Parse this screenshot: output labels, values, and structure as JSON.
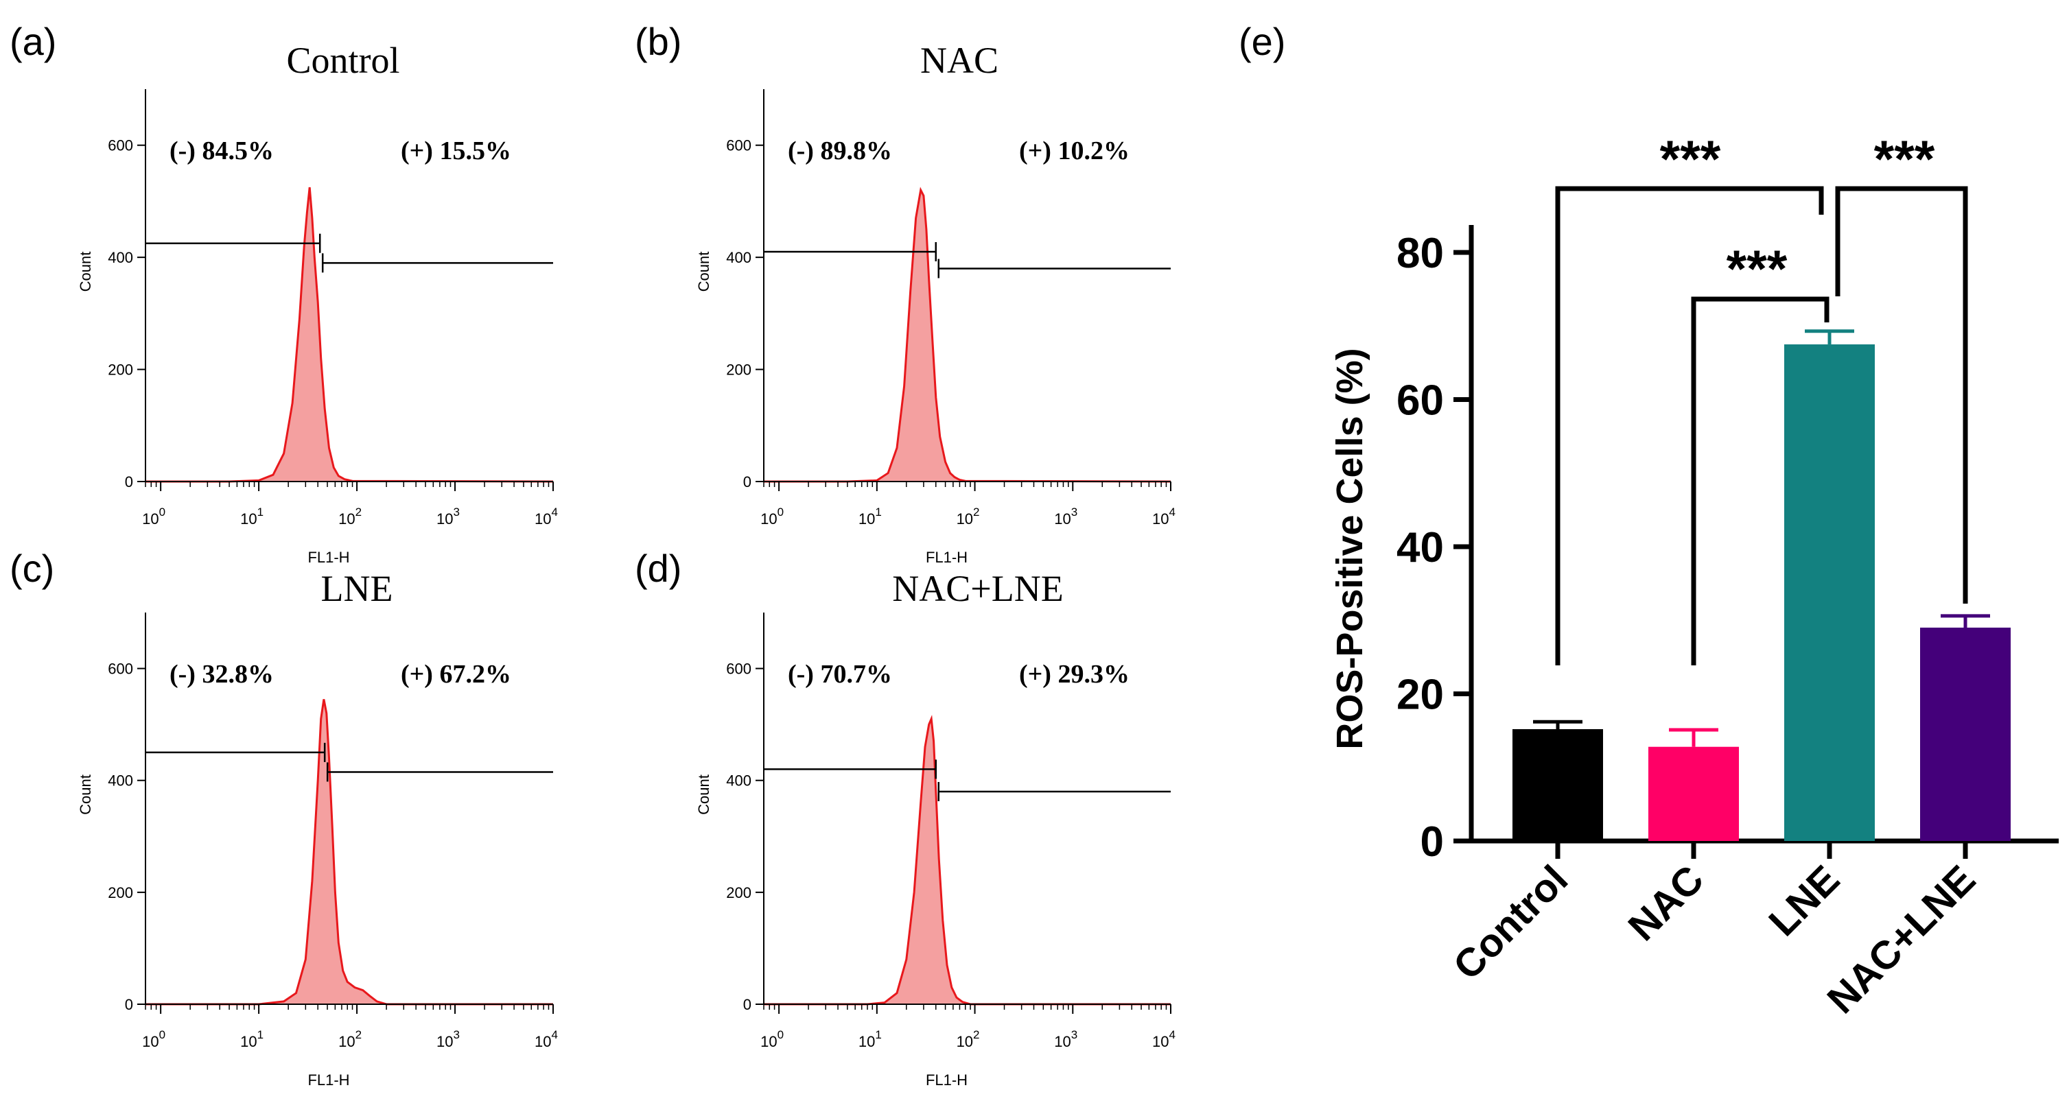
{
  "colors": {
    "histogram_fill": "#f4a0a0",
    "histogram_line": "#e8181c",
    "axis": "#000000"
  },
  "chart_data": [
    {
      "panel": "(a)",
      "type": "area",
      "title": "Control",
      "xlabel": "FL1-H",
      "ylabel": "Count",
      "x_scale": "log",
      "xlim": [
        0.7,
        10000
      ],
      "ylim": [
        0,
        700
      ],
      "x_ticks": [
        1,
        10,
        100,
        1000,
        10000
      ],
      "x_tick_labels": [
        {
          "base": "10",
          "exp": "0"
        },
        {
          "base": "10",
          "exp": "1"
        },
        {
          "base": "10",
          "exp": "2"
        },
        {
          "base": "10",
          "exp": "3"
        },
        {
          "base": "10",
          "exp": "4"
        }
      ],
      "y_ticks": [
        0,
        200,
        400,
        600
      ],
      "gates": {
        "negative": {
          "label": "(-)",
          "percent": "84.5%"
        },
        "positive": {
          "label": "(+)",
          "percent": "15.5%"
        },
        "negative_range": [
          0.7,
          42
        ],
        "negative_level": 425,
        "positive_range": [
          42,
          10000
        ],
        "positive_level": 390,
        "split": 42
      },
      "histogram": {
        "x": [
          0.7,
          5,
          10,
          14,
          18,
          22,
          26,
          29,
          31,
          33,
          35,
          37,
          40,
          43,
          47,
          52,
          58,
          65,
          75,
          90,
          10000
        ],
        "y": [
          0,
          0,
          2,
          12,
          50,
          140,
          290,
          420,
          480,
          525,
          470,
          400,
          320,
          220,
          130,
          60,
          25,
          10,
          4,
          1,
          0
        ]
      }
    },
    {
      "panel": "(b)",
      "type": "area",
      "title": "NAC",
      "xlabel": "FL1-H",
      "ylabel": "Count",
      "x_scale": "log",
      "xlim": [
        0.7,
        10000
      ],
      "ylim": [
        0,
        700
      ],
      "x_ticks": [
        1,
        10,
        100,
        1000,
        10000
      ],
      "x_tick_labels": [
        {
          "base": "10",
          "exp": "0"
        },
        {
          "base": "10",
          "exp": "1"
        },
        {
          "base": "10",
          "exp": "2"
        },
        {
          "base": "10",
          "exp": "3"
        },
        {
          "base": "10",
          "exp": "4"
        }
      ],
      "y_ticks": [
        0,
        200,
        400,
        600
      ],
      "gates": {
        "negative": {
          "label": "(-)",
          "percent": "89.8%"
        },
        "positive": {
          "label": "(+)",
          "percent": "10.2%"
        },
        "negative_range": [
          0.7,
          40
        ],
        "negative_level": 410,
        "positive_range": [
          40,
          10000
        ],
        "positive_level": 380,
        "split": 40
      },
      "histogram": {
        "x": [
          0.7,
          5,
          10,
          13,
          16,
          19,
          22,
          25,
          28,
          30,
          32,
          34,
          37,
          40,
          44,
          50,
          56,
          62,
          70,
          80,
          10000
        ],
        "y": [
          0,
          0,
          2,
          15,
          60,
          170,
          340,
          470,
          520,
          510,
          450,
          360,
          250,
          150,
          80,
          35,
          15,
          8,
          3,
          1,
          0
        ]
      }
    },
    {
      "panel": "(c)",
      "type": "area",
      "title": "LNE",
      "xlabel": "FL1-H",
      "ylabel": "Count",
      "x_scale": "log",
      "xlim": [
        0.7,
        10000
      ],
      "ylim": [
        0,
        700
      ],
      "x_ticks": [
        1,
        10,
        100,
        1000,
        10000
      ],
      "x_tick_labels": [
        {
          "base": "10",
          "exp": "0"
        },
        {
          "base": "10",
          "exp": "1"
        },
        {
          "base": "10",
          "exp": "2"
        },
        {
          "base": "10",
          "exp": "3"
        },
        {
          "base": "10",
          "exp": "4"
        }
      ],
      "y_ticks": [
        0,
        200,
        400,
        600
      ],
      "gates": {
        "negative": {
          "label": "(-)",
          "percent": "32.8%"
        },
        "positive": {
          "label": "(+)",
          "percent": "67.2%"
        },
        "negative_range": [
          0.7,
          47
        ],
        "negative_level": 450,
        "positive_range": [
          47,
          10000
        ],
        "positive_level": 415,
        "split": 47
      },
      "histogram": {
        "x": [
          0.7,
          10,
          18,
          24,
          30,
          35,
          40,
          43,
          46,
          49,
          52,
          56,
          60,
          65,
          72,
          80,
          95,
          115,
          135,
          160,
          200,
          10000
        ],
        "y": [
          0,
          0,
          5,
          20,
          80,
          220,
          400,
          510,
          545,
          520,
          440,
          320,
          200,
          110,
          60,
          40,
          30,
          25,
          15,
          5,
          0,
          0
        ]
      }
    },
    {
      "panel": "(d)",
      "type": "area",
      "title": "NAC+LNE",
      "xlabel": "FL1-H",
      "ylabel": "Count",
      "x_scale": "log",
      "xlim": [
        0.7,
        10000
      ],
      "ylim": [
        0,
        700
      ],
      "x_ticks": [
        1,
        10,
        100,
        1000,
        10000
      ],
      "x_tick_labels": [
        {
          "base": "10",
          "exp": "0"
        },
        {
          "base": "10",
          "exp": "1"
        },
        {
          "base": "10",
          "exp": "2"
        },
        {
          "base": "10",
          "exp": "3"
        },
        {
          "base": "10",
          "exp": "4"
        }
      ],
      "y_ticks": [
        0,
        200,
        400,
        600
      ],
      "gates": {
        "negative": {
          "label": "(-)",
          "percent": "70.7%"
        },
        "positive": {
          "label": "(+)",
          "percent": "29.3%"
        },
        "negative_range": [
          0.7,
          40
        ],
        "negative_level": 420,
        "positive_range": [
          40,
          10000
        ],
        "positive_level": 380,
        "split": 40
      },
      "histogram": {
        "x": [
          0.7,
          8,
          12,
          16,
          20,
          24,
          28,
          31,
          34,
          36,
          38,
          40,
          43,
          47,
          52,
          58,
          65,
          75,
          90,
          10000
        ],
        "y": [
          0,
          0,
          3,
          20,
          80,
          200,
          360,
          460,
          500,
          510,
          470,
          380,
          260,
          150,
          70,
          30,
          12,
          4,
          0,
          0
        ]
      }
    },
    {
      "panel": "(e)",
      "type": "bar",
      "title": "",
      "xlabel": "",
      "ylabel": "ROS-Positive Cells (%)",
      "categories": [
        "Control",
        "NAC",
        "LNE",
        "NAC+LNE"
      ],
      "values": [
        15.2,
        12.8,
        67.5,
        29.0
      ],
      "errors": [
        1.0,
        2.3,
        1.8,
        1.6
      ],
      "colors": [
        "#000000",
        "#ff0066",
        "#138180",
        "#44007a"
      ],
      "ylim": [
        0,
        90
      ],
      "y_ticks": [
        0,
        20,
        40,
        60,
        80
      ],
      "significance": [
        {
          "from": 0,
          "to": 2,
          "label": "***"
        },
        {
          "from": 1,
          "to": 2,
          "label": "***"
        },
        {
          "from": 2,
          "to": 3,
          "label": "***"
        }
      ]
    }
  ]
}
